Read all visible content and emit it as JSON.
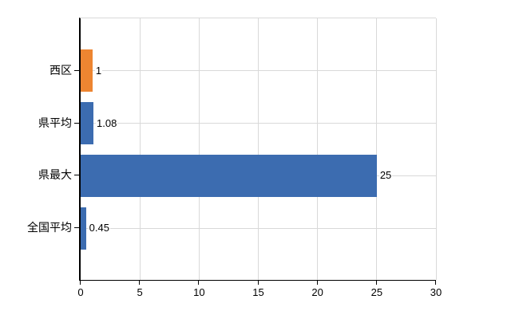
{
  "chart_data": {
    "type": "bar",
    "orientation": "horizontal",
    "title": "",
    "categories": [
      "西区",
      "県平均",
      "県最大",
      "全国平均"
    ],
    "values": [
      1,
      1.08,
      25,
      0.45
    ],
    "value_labels": [
      "1",
      "1.08",
      "25",
      "0.45"
    ],
    "bar_colors": [
      "#ED8531",
      "#3C6CB0",
      "#3C6CB0",
      "#3C6CB0"
    ],
    "x_ticks": [
      "0",
      "5",
      "10",
      "15",
      "20",
      "25",
      "30"
    ],
    "xlim": [
      0,
      30
    ],
    "xlabel": "",
    "ylabel": "",
    "grid": true,
    "legend": false,
    "colors": {
      "highlight_bar": "#ED8531",
      "default_bar": "#3C6CB0",
      "gridline": "#d9d9d9",
      "axis": "#000000",
      "text": "#000000",
      "background": "#ffffff"
    }
  }
}
